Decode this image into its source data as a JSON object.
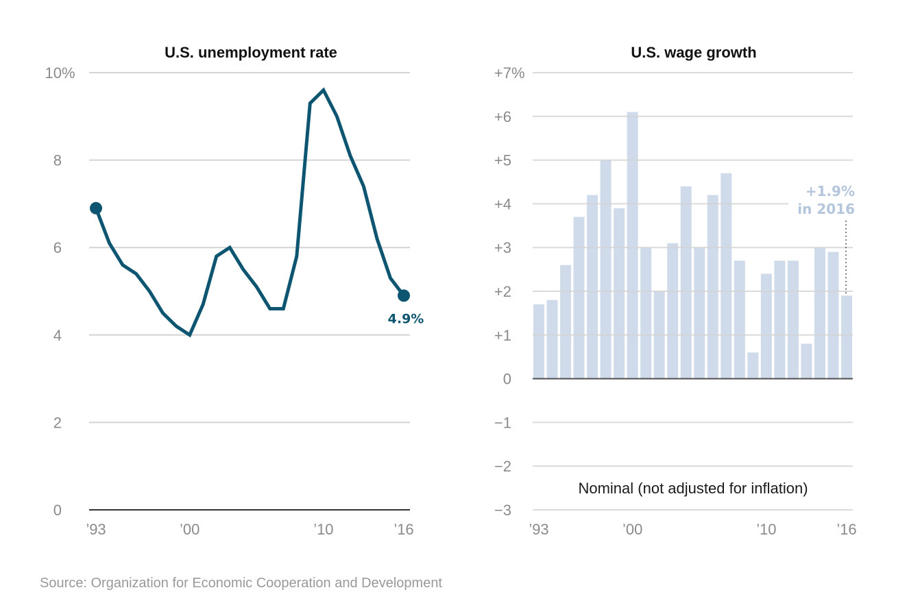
{
  "chart_data": [
    {
      "type": "line",
      "title": "U.S. unemployment rate",
      "xlabel": "",
      "ylabel": "",
      "x": [
        1993,
        1994,
        1995,
        1996,
        1997,
        1998,
        1999,
        2000,
        2001,
        2002,
        2003,
        2004,
        2005,
        2006,
        2007,
        2008,
        2009,
        2010,
        2011,
        2012,
        2013,
        2014,
        2015,
        2016
      ],
      "series": [
        {
          "name": "Unemployment rate (%)",
          "values": [
            6.9,
            6.1,
            5.6,
            5.4,
            5.0,
            4.5,
            4.2,
            4.0,
            4.7,
            5.8,
            6.0,
            5.5,
            5.1,
            4.6,
            4.6,
            5.8,
            9.3,
            9.6,
            9.0,
            8.1,
            7.4,
            6.2,
            5.3,
            4.9
          ]
        }
      ],
      "ylim": [
        0,
        10
      ],
      "xlim": [
        1993,
        2016
      ],
      "y_ticks": [
        {
          "value": 10,
          "label": "10",
          "suffix": "%"
        },
        {
          "value": 8,
          "label": "8",
          "suffix": ""
        },
        {
          "value": 6,
          "label": "6",
          "suffix": ""
        },
        {
          "value": 4,
          "label": "4",
          "suffix": ""
        },
        {
          "value": 2,
          "label": "2",
          "suffix": ""
        },
        {
          "value": 0,
          "label": "0",
          "suffix": ""
        }
      ],
      "x_ticks": [
        {
          "value": 1993,
          "label": "’93"
        },
        {
          "value": 2000,
          "label": "’00"
        },
        {
          "value": 2010,
          "label": "’10"
        },
        {
          "value": 2016,
          "label": "’16"
        }
      ],
      "grid": true,
      "annotations": [
        {
          "x": 2016,
          "y": 4.9,
          "text": "4.9%"
        }
      ],
      "line_color": "#0d5570"
    },
    {
      "type": "bar",
      "title": "U.S. wage growth",
      "xlabel": "",
      "ylabel": "",
      "categories": [
        1993,
        1994,
        1995,
        1996,
        1997,
        1998,
        1999,
        2000,
        2001,
        2002,
        2003,
        2004,
        2005,
        2006,
        2007,
        2008,
        2009,
        2010,
        2011,
        2012,
        2013,
        2014,
        2015,
        2016
      ],
      "values": [
        1.7,
        1.8,
        2.6,
        3.7,
        4.2,
        5.0,
        3.9,
        6.1,
        3.0,
        2.0,
        3.1,
        4.4,
        3.0,
        4.2,
        4.7,
        2.7,
        0.6,
        2.4,
        2.7,
        2.7,
        0.8,
        3.0,
        2.9,
        1.9
      ],
      "ylim": [
        -3,
        7
      ],
      "y_ticks": [
        {
          "value": 7,
          "label": "+7",
          "suffix": "%"
        },
        {
          "value": 6,
          "label": "+6",
          "suffix": ""
        },
        {
          "value": 5,
          "label": "+5",
          "suffix": ""
        },
        {
          "value": 4,
          "label": "+4",
          "suffix": ""
        },
        {
          "value": 3,
          "label": "+3",
          "suffix": ""
        },
        {
          "value": 2,
          "label": "+2",
          "suffix": ""
        },
        {
          "value": 1,
          "label": "+1",
          "suffix": ""
        },
        {
          "value": 0,
          "label": "0",
          "suffix": ""
        },
        {
          "value": -1,
          "label": "−1",
          "suffix": ""
        },
        {
          "value": -2,
          "label": "−2",
          "suffix": ""
        },
        {
          "value": -3,
          "label": "−3",
          "suffix": ""
        }
      ],
      "x_ticks": [
        {
          "value": 1993,
          "label": "’93"
        },
        {
          "value": 2000,
          "label": "’00"
        },
        {
          "value": 2010,
          "label": "’10"
        },
        {
          "value": 2016,
          "label": "’16"
        }
      ],
      "grid": true,
      "annotations": [
        {
          "x": 2016,
          "y": 1.9,
          "lines": [
            "+1.9%",
            "in 2016"
          ]
        }
      ],
      "note": "Nominal (not adjusted for inflation)",
      "bar_color": "#cfdbea",
      "annotation_color": "#b3c6dc"
    }
  ],
  "source": "Source: Organization for Economic Cooperation and Development"
}
